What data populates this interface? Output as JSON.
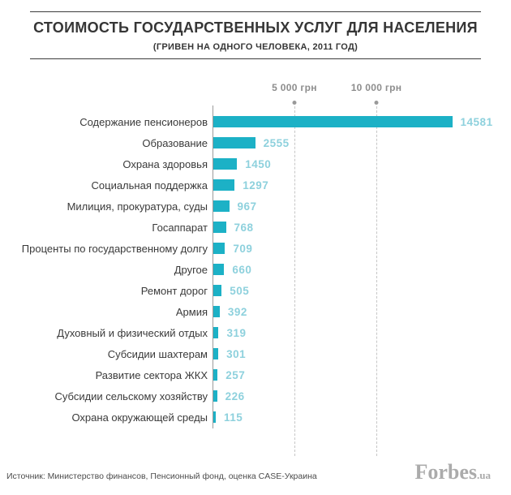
{
  "header": {
    "title": "СТОИМОСТЬ ГОСУДАРСТВЕННЫХ УСЛУГ ДЛЯ НАСЕЛЕНИЯ",
    "subtitle": "(ГРИВЕН НА ОДНОГО ЧЕЛОВЕКА, 2011 ГОД)"
  },
  "chart_data": {
    "type": "bar",
    "orientation": "horizontal",
    "unit": "грн",
    "categories": [
      "Содержание пенсионеров",
      "Образование",
      "Охрана здоровья",
      "Социальная поддержка",
      "Милиция, прокуратура, суды",
      "Госаппарат",
      "Проценты по государственному долгу",
      "Другое",
      "Ремонт дорог",
      "Армия",
      "Духовный и физический отдых",
      "Субсидии шахтерам",
      "Развитие сектора ЖКХ",
      "Субсидии сельскому хозяйству",
      "Охрана окружающей среды"
    ],
    "values": [
      14581,
      2555,
      1450,
      1297,
      967,
      768,
      709,
      660,
      505,
      392,
      319,
      301,
      257,
      226,
      115
    ],
    "x_ticks": [
      {
        "label": "5 000 грн",
        "value": 5000
      },
      {
        "label": "10 000 грн",
        "value": 10000
      }
    ],
    "xlim": [
      0,
      15000
    ],
    "grid": "vertical-dashed",
    "value_labels": "right-of-bar"
  },
  "colors": {
    "bar": "#1cb1c6",
    "value_label": "#8ed1dd",
    "brand": "#ababab"
  },
  "footer": {
    "source": "Источник: Министерство финансов, Пенсионный фонд, оценка CASE-Украина",
    "brand": "Forbes",
    "brand_suffix": ".ua"
  }
}
